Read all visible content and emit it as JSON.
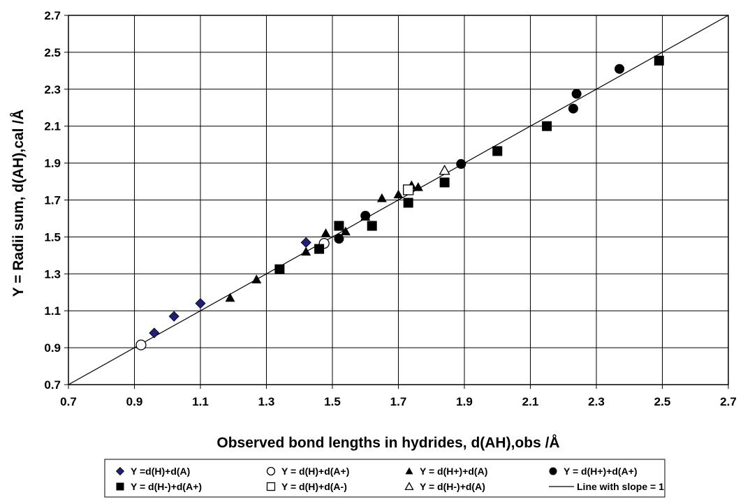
{
  "chart_data": {
    "type": "scatter",
    "xlabel": "Observed bond lengths in hydrides, d(AH),obs    /Å",
    "ylabel": "Y = Radii sum, d(AH),cal   /Å",
    "xlim": [
      0.7,
      2.7
    ],
    "ylim": [
      0.7,
      2.7
    ],
    "x_ticks": [
      "0.7",
      "0.9",
      "1.1",
      "1.3",
      "1.5",
      "1.7",
      "1.9",
      "2.1",
      "2.3",
      "2.5",
      "2.7"
    ],
    "y_ticks": [
      "0.7",
      "0.9",
      "1.1",
      "1.3",
      "1.5",
      "1.7",
      "1.9",
      "2.1",
      "2.3",
      "2.5",
      "2.7"
    ],
    "grid": true,
    "legend_position": "bottom",
    "series": [
      {
        "name": "Y =d(H)+d(A)",
        "marker": "diamond",
        "color": "#1f1f7a",
        "points": [
          [
            0.96,
            0.98
          ],
          [
            1.02,
            1.07
          ],
          [
            1.1,
            1.14
          ],
          [
            1.42,
            1.47
          ]
        ]
      },
      {
        "name": "Y = d(H)+d(A+)",
        "marker": "circle-open",
        "color": "#000000",
        "points": [
          [
            0.92,
            0.915
          ],
          [
            1.475,
            1.465
          ]
        ]
      },
      {
        "name": "Y = d(H+)+d(A)",
        "marker": "triangle",
        "color": "#000000",
        "points": [
          [
            1.19,
            1.17
          ],
          [
            1.27,
            1.27
          ],
          [
            1.42,
            1.42
          ],
          [
            1.48,
            1.52
          ],
          [
            1.54,
            1.53
          ],
          [
            1.6,
            1.61
          ],
          [
            1.65,
            1.71
          ],
          [
            1.7,
            1.73
          ],
          [
            1.74,
            1.78
          ],
          [
            1.76,
            1.77
          ]
        ]
      },
      {
        "name": "Y = d(H+)+d(A+)",
        "marker": "circle",
        "color": "#000000",
        "points": [
          [
            1.52,
            1.49
          ],
          [
            1.6,
            1.615
          ],
          [
            1.89,
            1.895
          ],
          [
            2.23,
            2.195
          ],
          [
            2.24,
            2.275
          ],
          [
            2.37,
            2.41
          ]
        ]
      },
      {
        "name": "Y = d(H-)+d(A+)",
        "marker": "square",
        "color": "#000000",
        "points": [
          [
            1.34,
            1.325
          ],
          [
            1.46,
            1.435
          ],
          [
            1.52,
            1.56
          ],
          [
            1.62,
            1.56
          ],
          [
            1.73,
            1.685
          ],
          [
            1.84,
            1.795
          ],
          [
            2.0,
            1.965
          ],
          [
            2.15,
            2.1
          ],
          [
            2.49,
            2.455
          ]
        ]
      },
      {
        "name": "Y = d(H)+d(A-)",
        "marker": "square-open",
        "color": "#000000",
        "points": [
          [
            1.73,
            1.755
          ]
        ]
      },
      {
        "name": "Y = d(H-)+d(A)",
        "marker": "triangle-open",
        "color": "#000000",
        "points": [
          [
            1.84,
            1.86
          ]
        ]
      },
      {
        "name": "Line with slope = 1",
        "marker": "line",
        "color": "#000000",
        "points": [
          [
            0.7,
            0.7
          ],
          [
            2.7,
            2.7
          ]
        ]
      }
    ]
  }
}
